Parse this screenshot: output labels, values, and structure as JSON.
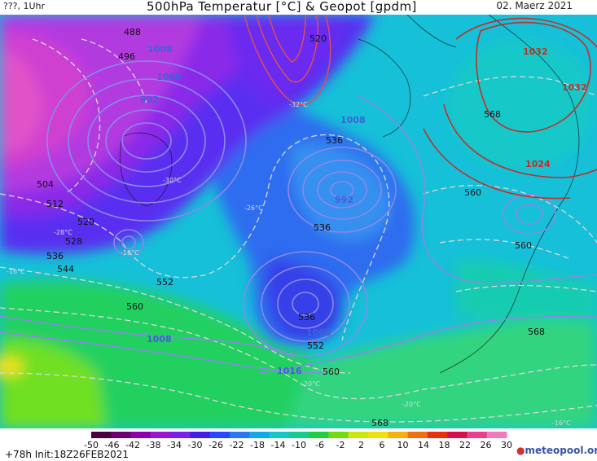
{
  "header": {
    "left": "???, 1Uhr",
    "title": "500hPa Temperatur [°C] & Geopot [gpdm]",
    "date": "02. Maerz 2021"
  },
  "footer": {
    "init": "+78h  Init:18Z26FEB2021",
    "brand_prefix": "meteo",
    "brand_suffix": "pool.org"
  },
  "legend": {
    "ticks": [
      "-50",
      "-46",
      "-42",
      "-38",
      "-34",
      "-30",
      "-26",
      "-22",
      "-18",
      "-14",
      "-10",
      "-6",
      "-2",
      "2",
      "6",
      "10",
      "14",
      "18",
      "22",
      "26",
      "30"
    ],
    "colors": [
      "#4a0040",
      "#6b0070",
      "#8e00a8",
      "#9a14d0",
      "#7a1ee8",
      "#4020e8",
      "#2848ff",
      "#2a78f0",
      "#10a8e6",
      "#14c8c8",
      "#16cc8c",
      "#20cc40",
      "#70dc10",
      "#c8e810",
      "#f0e010",
      "#f8b010",
      "#f07010",
      "#e83010",
      "#d8104a",
      "#e8408c",
      "#f07cc0"
    ]
  },
  "map": {
    "colors": {
      "magenta": "#c83cd8",
      "purple": "#8830e8",
      "violet": "#6a2cf0",
      "blue": "#3a52f0",
      "lightblue": "#2a90f0",
      "cyan": "#14bce0",
      "teal": "#16cca8",
      "green": "#20d050",
      "lime": "#8ce818",
      "yellow": "#f0e020"
    },
    "geopot_labels": [
      "488",
      "496",
      "504",
      "512",
      "520",
      "528",
      "536",
      "544",
      "552",
      "560",
      "520",
      "536",
      "536",
      "536",
      "552",
      "560",
      "560",
      "560",
      "568",
      "568",
      "568"
    ],
    "pressure_blue": [
      "1008",
      "1008",
      "992",
      "1008",
      "1008",
      "1016",
      "992",
      "1008"
    ],
    "pressure_red": [
      "1032",
      "1032",
      "1024"
    ],
    "temp_labels": [
      "-16°C",
      "-30°C",
      "-16°C",
      "-26°C",
      "-20°C",
      "-20°C",
      "-16°C",
      "-32°C",
      "-28°C"
    ]
  }
}
